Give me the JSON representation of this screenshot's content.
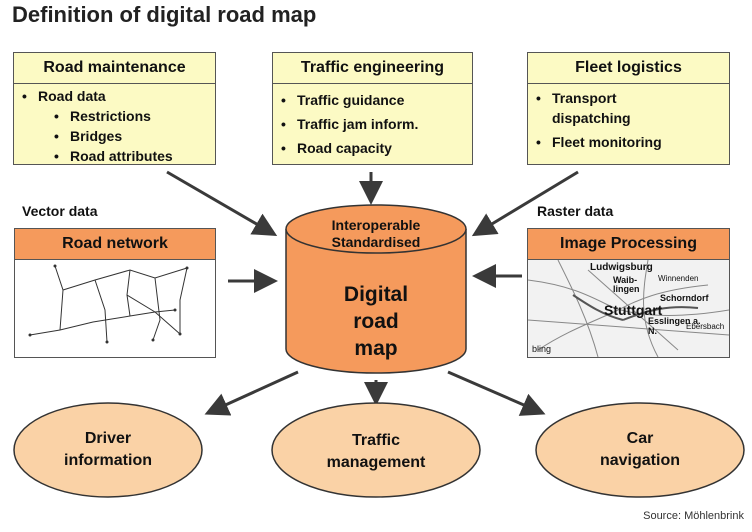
{
  "title": "Definition of digital road map",
  "boxes": {
    "road_maintenance": {
      "title": "Road maintenance",
      "items": [
        {
          "text": "Road data",
          "level": 1
        },
        {
          "text": "Restrictions",
          "level": 2
        },
        {
          "text": "Bridges",
          "level": 2
        },
        {
          "text": "Road attributes",
          "level": 2
        }
      ]
    },
    "traffic_engineering": {
      "title": "Traffic engineering",
      "items": [
        "Traffic guidance",
        "Traffic jam inform.",
        "Road capacity"
      ]
    },
    "fleet_logistics": {
      "title": "Fleet logistics",
      "items": [
        "Transport dispatching",
        "Fleet monitoring"
      ]
    }
  },
  "vector": {
    "label": "Vector data",
    "box_title": "Road network"
  },
  "raster": {
    "label": "Raster data",
    "box_title": "Image Processing",
    "map_labels": [
      "Ludwigsburg",
      "Waib-lingen",
      "Winnenden",
      "Schorndorf",
      "Stuttgart",
      "Esslingen a. N.",
      "Ebersbach",
      "bling"
    ]
  },
  "center": {
    "top_line1": "Interoperable",
    "top_line2": "Standardised",
    "line1": "Digital",
    "line2": "road",
    "line3": "map"
  },
  "outputs": {
    "driver": {
      "line1": "Driver",
      "line2": "information"
    },
    "traffic": {
      "line1": "Traffic",
      "line2": "management"
    },
    "car": {
      "line1": "Car",
      "line2": "navigation"
    }
  },
  "source": "Source: Möhlenbrink",
  "colors": {
    "yellow_box": "#fcfac4",
    "orange_header": "#f59a5c",
    "cylinder": "#f59a5c",
    "oval": "#fad2a6",
    "arrow": "#3a3a3a"
  }
}
